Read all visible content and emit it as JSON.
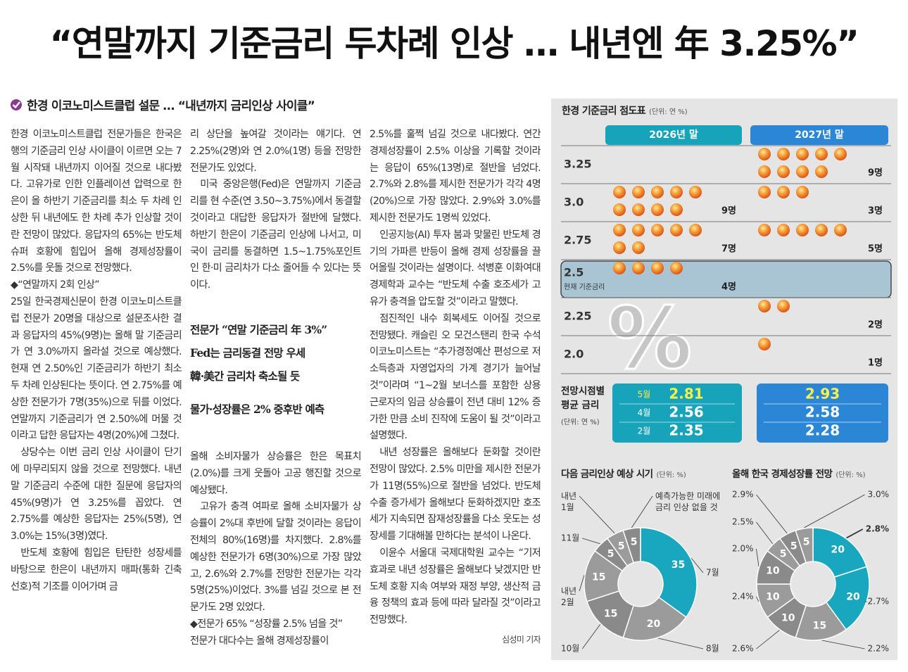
{
  "header": {
    "title": "“연말까지 기준금리 두차례 인상 … 내년엔 年 3.25%”"
  },
  "article": {
    "subhead": "한경 이코노미스트클럽 설문 … “내년까지 금리인상 사이클”",
    "columns": [
      [
        {
          "p": "한경 이코노미스트클럽 전문가들은 한국은행의 기준금리 인상 사이클이 이르면 오는 7월 시작돼 내년까지 이어질 것으로 내다봤다. 고유가로 인한 인플레이션 압력으로 한은이 올 하반기 기준금리를 최소 두 차례 인상한 뒤 내년에도 한 차례 추가 인상할 것이란 전망이 많았다. 응답자의 65%는 반도체 슈퍼 호황에 힘입어 올해 경제성장률이 2.5%를 웃돌 것으로 전망했다."
        },
        {
          "h": "◆“연말까지 2회 인상”"
        },
        {
          "p": "25일 한국경제신문이 한경 이코노미스트클럽 전문가 20명을 대상으로 설문조사한 결과 응답자의 45%(9명)는 올해 말 기준금리가 연 3.0%까지 올라설 것으로 예상했다. 현재 연 2.50%인 기준금리가 하반기 최소 두 차례 인상된다는 뜻이다. 연 2.75%를 예상한 전문가가 7명(35%)으로 뒤를 이었다. 연말까지 기준금리가 연 2.50%에 머물 것이라고 답한 응답자는 4명(20%)에 그쳤다."
        },
        {
          "p": "상당수는 이번 금리 인상 사이클이 단기에 마무리되지 않을 것으로 전망했다. 내년 말 기준금리 수준에 대한 질문에 응답자의 45%(9명)가 연 3.25%를 꼽았다. 연 2.75%를 예상한 응답자는 25%(5명), 연 3.0%는 15%(3명)였다."
        },
        {
          "p": "반도체 호황에 힘입은 탄탄한 성장세를 바탕으로 한은이 내년까지 매파(통화 긴축 선호)적 기조를 이어가며 금"
        }
      ],
      [
        {
          "p": "리 상단을 높여갈 것이라는 얘기다. 연 2.25%(2명)와 연 2.0%(1명) 등을 전망한 전문가도 있었다."
        },
        {
          "p": "미국 중앙은행(Fed)은 연말까지 기준금리를 현 수준(연 3.50~3.75%)에서 동결할 것이라고 대답한 응답자가 절반에 달했다. 하반기 한은이 기준금리 인상에 나서고, 미국이 금리를 동결하면 1.5~1.75%포인트인 한·미 금리차가 다소 줄어들 수 있다는 뜻이다."
        },
        {
          "quote": [
            [
              "전문가 “연말 기준금리 年 3%”",
              "Fed는 금리동결 전망 우세",
              "韓·美간 금리차 축소될 듯"
            ],
            [
              "물가·성장률은 2% 중후반 예측"
            ]
          ]
        },
        {
          "p": "올해 소비자물가 상승률은 한은 목표치(2.0%)를 크게 웃돌아 고공 행진할 것으로 예상됐다."
        },
        {
          "p": "고유가 충격 여파로 올해 소비자물가 상승률이 2%대 후반에 달할 것이라는 응답이 전체의 80%(16명)를 차지했다. 2.8%를 예상한 전문가가 6명(30%)으로 가장 많았고, 2.6%와 2.7%를 전망한 전문가는 각각 5명(25%)이었다. 3%를 넘길 것으로 본 전문가도 2명 있었다."
        },
        {
          "h": "◆전문가 65% “성장률 2.5% 넘을 것”"
        },
        {
          "p": "전문가 대다수는 올해 경제성장률이"
        }
      ],
      [
        {
          "p": "2.5%를 훌쩍 넘길 것으로 내다봤다. 연간 경제성장률이 2.5% 이상을 기록할 것이라는 응답이 65%(13명)로 절반을 넘었다. 2.7%와 2.8%를 제시한 전문가가 각각 4명(20%)으로 가장 많았다. 2.9%와 3.0%를 제시한 전문가도 1명씩 있었다."
        },
        {
          "p": "인공지능(AI) 투자 붐과 맞물린 반도체 경기의 가파른 반등이 올해 경제 성장률을 끌어올릴 것이라는 설명이다. 석병훈 이화여대 경제학과 교수는 “반도체 수출 호조세가 고유가 충격을 압도할 것”이라고 말했다."
        },
        {
          "p": "점진적인 내수 회복세도 이어질 것으로 전망됐다. 캐슬린 오 모건스탠리 한국 수석이코노미스트는 “추가경정예산 편성으로 저소득층과 자영업자의 가계 경기가 늘어날 것”이라며 “1~2월 보너스를 포함한 상용 근로자의 임금 상승률이 전년 대비 12% 증가한 만큼 소비 진작에 도움이 될 것”이라고 설명했다."
        },
        {
          "p": "내년 성장률은 올해보다 둔화할 것이란 전망이 많았다. 2.5% 미만을 제시한 전문가가 11명(55%)으로 절반을 넘었다. 반도체 수출 증가세가 올해보다 둔화하겠지만 호조세가 지속되면 잠재성장률을 다소 웃도는 성장세를 기대해볼 만하다는 분석이 나온다."
        },
        {
          "p": "이윤수 서울대 국제대학원 교수는 “기저효과로 내년 성장률은 올해보다 낮겠지만 반도체 호황 지속 여부와 재정 부양, 생산적 금융 정책의 효과 등에 따라 달라질 것”이라고 전망했다."
        }
      ]
    ],
    "byline": "심성미 기자"
  },
  "dot_plot": {
    "title": "한경 기준금리 점도표",
    "unit": "(단위: 연 %)",
    "watermark": "%",
    "columns": [
      {
        "name": "2026년 말",
        "color": "#17a3b9"
      },
      {
        "name": "2027년 말",
        "color": "#2c86d6"
      }
    ],
    "rows": [
      {
        "rate": "3.25",
        "cells": [
          null,
          {
            "count": 9,
            "label": "9명"
          }
        ]
      },
      {
        "rate": "3.0",
        "cells": [
          {
            "count": 9,
            "label": "9명"
          },
          {
            "count": 3,
            "label": "3명"
          }
        ]
      },
      {
        "rate": "2.75",
        "cells": [
          {
            "count": 7,
            "label": "7명"
          },
          {
            "count": 5,
            "label": "5명"
          }
        ]
      },
      {
        "rate": "2.5",
        "note": "현재 기준금리",
        "cells": [
          {
            "count": 4,
            "label": "4명"
          },
          null
        ]
      },
      {
        "rate": "2.25",
        "cells": [
          null,
          {
            "count": 2,
            "label": "2명"
          }
        ]
      },
      {
        "rate": "2.0",
        "cells": [
          null,
          {
            "count": 1,
            "label": "1명"
          }
        ]
      }
    ]
  },
  "averages": {
    "title_lines": [
      "전망시점별",
      "평균 금리"
    ],
    "unit": "(단위: 연 %)",
    "months": [
      "5월",
      "4월",
      "2월"
    ],
    "row_colors": [
      "#fff04a",
      "#ffffff",
      "#ffffff"
    ],
    "values": [
      [
        2.81,
        2.56,
        2.35
      ],
      [
        2.93,
        2.58,
        2.28
      ]
    ]
  },
  "donuts": [
    {
      "title": "다음 금리인상 예상 시기",
      "unit": "(단위: %)",
      "slices": [
        {
          "label": "7월",
          "value": 35,
          "color": "#19a6bf"
        },
        {
          "label": "8월",
          "value": 20,
          "color": "#9b9b9b"
        },
        {
          "label": "10월",
          "value": 15,
          "color": "#8a8a8a"
        },
        {
          "label": "내년 2월",
          "value": 15,
          "color": "#9b9b9b"
        },
        {
          "label": "11월",
          "value": 5,
          "color": "#8a8a8a"
        },
        {
          "label": "내년 1월",
          "value": 5,
          "color": "#9b9b9b"
        },
        {
          "label": "예측가능한 미래에 금리 인상 없을 것",
          "value": 5,
          "color": "#8a8a8a"
        }
      ]
    },
    {
      "title": "올해 한국 경제성장률 전망",
      "unit": "(단위: %)",
      "slices": [
        {
          "label": "2.8%",
          "value": 20,
          "color": "#19a6bf",
          "bold": true
        },
        {
          "label": "2.7%",
          "value": 20,
          "color": "#19a6bf"
        },
        {
          "label": "2.2%",
          "value": 15,
          "color": "#9b9b9b"
        },
        {
          "label": "2.6%",
          "value": 10,
          "color": "#8a8a8a"
        },
        {
          "label": "2.4%",
          "value": 10,
          "color": "#9b9b9b"
        },
        {
          "label": "2.0%",
          "value": 10,
          "color": "#8a8a8a"
        },
        {
          "label": "2.5%",
          "value": 5,
          "color": "#9b9b9b"
        },
        {
          "label": "2.9%",
          "value": 5,
          "color": "#8a8a8a"
        },
        {
          "label": "3.0%",
          "value": 5,
          "color": "#9b9b9b"
        }
      ]
    }
  ]
}
